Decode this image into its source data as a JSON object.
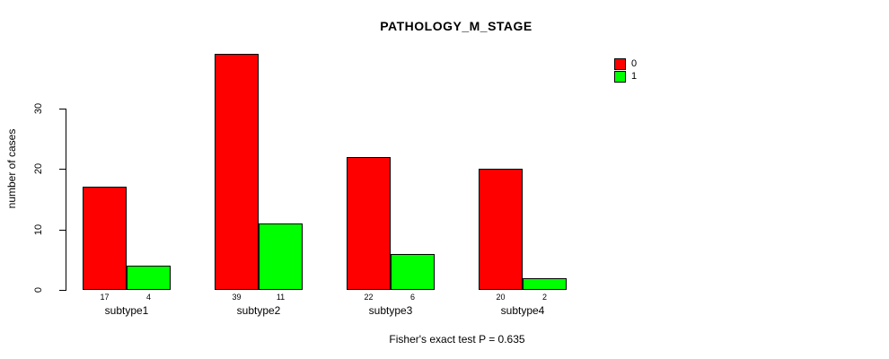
{
  "chart_data": {
    "type": "bar",
    "title": "PATHOLOGY_M_STAGE",
    "ylabel": "number of cases",
    "xlabel": "",
    "categories": [
      "subtype1",
      "subtype2",
      "subtype3",
      "subtype4"
    ],
    "series": [
      {
        "name": "0",
        "color": "#ff0000",
        "values": [
          17,
          39,
          22,
          20
        ]
      },
      {
        "name": "1",
        "color": "#00ff00",
        "values": [
          4,
          11,
          6,
          2
        ]
      }
    ],
    "yticks": [
      0,
      10,
      20,
      30
    ],
    "ylim": [
      0,
      40
    ],
    "grid": false,
    "bar_border_color": "#000000",
    "legend_position": "top-right",
    "value_labels_shown": true,
    "annotation": "Fisher's exact test P = 0.635"
  }
}
